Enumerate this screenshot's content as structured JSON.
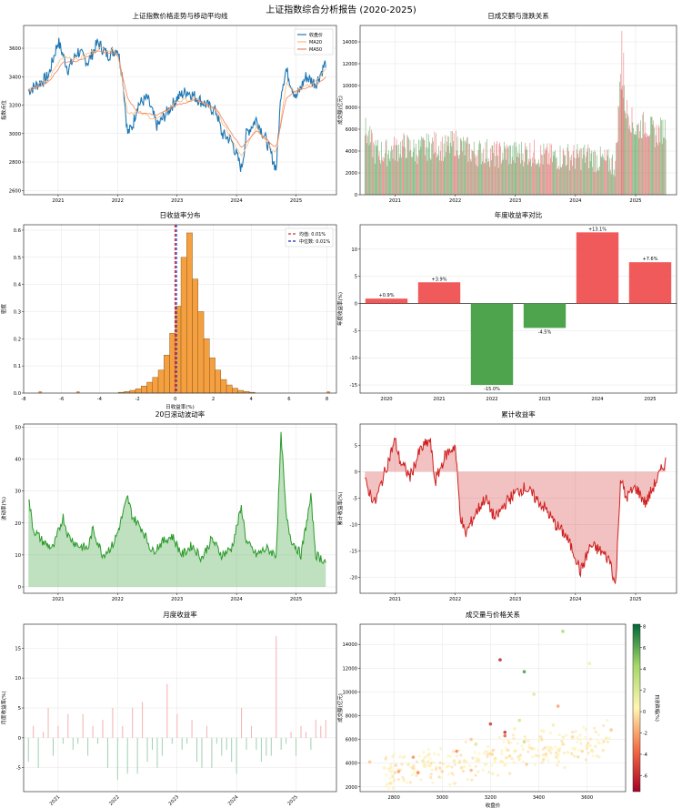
{
  "figure": {
    "title": "上证指数综合分析报告 (2020-2025)"
  },
  "chart_data": [
    {
      "id": "price",
      "type": "line",
      "title": "上证指数价格走势与移动平均线",
      "xlabel": "",
      "ylabel": "指数点位",
      "xticks": [
        "2021",
        "2022",
        "2023",
        "2024",
        "2025"
      ],
      "yticks": [
        2600,
        2800,
        3000,
        3200,
        3400,
        3600
      ],
      "ylim": [
        2570,
        3760
      ],
      "legend": {
        "placement": "top-right",
        "entries": [
          "收盘价",
          "MA20",
          "MA50"
        ]
      },
      "series": [
        {
          "name": "收盘价",
          "color": "#1f77b4",
          "x": [
            "2020-07",
            "2020-09",
            "2020-11",
            "2021-01",
            "2021-02",
            "2021-03",
            "2021-05",
            "2021-07",
            "2021-09",
            "2021-11",
            "2022-01",
            "2022-02",
            "2022-03",
            "2022-04",
            "2022-05",
            "2022-07",
            "2022-09",
            "2022-11",
            "2023-01",
            "2023-03",
            "2023-05",
            "2023-07",
            "2023-09",
            "2023-10",
            "2023-12",
            "2024-01",
            "2024-02",
            "2024-03",
            "2024-05",
            "2024-07",
            "2024-09",
            "2024-10",
            "2024-11",
            "2024-12",
            "2025-01",
            "2025-03",
            "2025-05",
            "2025-07"
          ],
          "values": [
            3300,
            3350,
            3400,
            3650,
            3550,
            3450,
            3580,
            3500,
            3640,
            3550,
            3600,
            3400,
            3000,
            3050,
            3200,
            3250,
            3050,
            3150,
            3250,
            3300,
            3250,
            3200,
            3150,
            3000,
            2950,
            2850,
            2750,
            3000,
            3100,
            2950,
            2750,
            3300,
            3450,
            3350,
            3250,
            3400,
            3350,
            3500
          ]
        },
        {
          "name": "MA20",
          "color": "#ffbb78",
          "x": [
            "2020-07",
            "2020-11",
            "2021-02",
            "2021-05",
            "2021-09",
            "2022-01",
            "2022-03",
            "2022-05",
            "2022-09",
            "2023-01",
            "2023-05",
            "2023-09",
            "2023-12",
            "2024-02",
            "2024-05",
            "2024-09",
            "2024-11",
            "2025-01",
            "2025-05",
            "2025-07"
          ],
          "values": [
            3300,
            3380,
            3550,
            3520,
            3600,
            3580,
            3150,
            3150,
            3100,
            3230,
            3240,
            3150,
            2960,
            2850,
            3050,
            2850,
            3350,
            3300,
            3360,
            3450
          ]
        },
        {
          "name": "MA50",
          "color": "#f08060",
          "x": [
            "2020-07",
            "2020-11",
            "2021-02",
            "2021-05",
            "2021-09",
            "2022-01",
            "2022-03",
            "2022-05",
            "2022-09",
            "2023-01",
            "2023-05",
            "2023-09",
            "2023-12",
            "2024-02",
            "2024-05",
            "2024-09",
            "2024-11",
            "2025-01",
            "2025-05",
            "2025-07"
          ],
          "values": [
            3300,
            3360,
            3500,
            3510,
            3580,
            3560,
            3250,
            3150,
            3130,
            3200,
            3240,
            3170,
            3000,
            2900,
            3020,
            2900,
            3250,
            3300,
            3340,
            3400
          ]
        }
      ]
    },
    {
      "id": "volume",
      "type": "bar",
      "title": "日成交额与涨跌关系",
      "xlabel": "",
      "ylabel": "成交额(亿元)",
      "xticks": [
        "2021",
        "2022",
        "2023",
        "2024",
        "2025"
      ],
      "yticks": [
        0,
        2000,
        4000,
        6000,
        8000,
        10000,
        12000,
        14000
      ],
      "ylim": [
        0,
        15500
      ],
      "colors": {
        "up": "#e06060",
        "down": "#50a050"
      },
      "x": [
        "2020-07",
        "2020-09",
        "2020-11",
        "2021-01",
        "2021-03",
        "2021-05",
        "2021-07",
        "2021-09",
        "2021-11",
        "2022-01",
        "2022-03",
        "2022-05",
        "2022-07",
        "2022-09",
        "2022-11",
        "2023-01",
        "2023-03",
        "2023-05",
        "2023-07",
        "2023-09",
        "2023-11",
        "2024-01",
        "2024-03",
        "2024-05",
        "2024-07",
        "2024-09",
        "2024-10",
        "2024-11",
        "2024-12",
        "2025-01",
        "2025-03",
        "2025-05",
        "2025-07"
      ],
      "values": [
        6000,
        4000,
        3800,
        4200,
        4500,
        4000,
        4300,
        4600,
        4200,
        4800,
        4200,
        3800,
        4000,
        3600,
        3900,
        3700,
        3900,
        3800,
        3500,
        3400,
        3600,
        3400,
        3600,
        3300,
        3000,
        2800,
        11000,
        8000,
        7000,
        6000,
        6500,
        5500,
        6200
      ]
    },
    {
      "id": "return_dist",
      "type": "bar",
      "title": "日收益率分布",
      "xlabel": "日收益率(%)",
      "ylabel": "密度",
      "xlim": [
        -8,
        8.5
      ],
      "ylim": [
        0,
        0.62
      ],
      "xticks": [
        -8,
        -6,
        -4,
        -2,
        0,
        2,
        4,
        6,
        8
      ],
      "yticks": [
        0.0,
        0.1,
        0.2,
        0.3,
        0.4,
        0.5,
        0.6
      ],
      "bin_width": 0.3,
      "bin_start": -3.0,
      "values": [
        0.003,
        0.006,
        0.01,
        0.016,
        0.026,
        0.04,
        0.058,
        0.085,
        0.14,
        0.22,
        0.32,
        0.5,
        0.59,
        0.42,
        0.3,
        0.2,
        0.13,
        0.085,
        0.05,
        0.03,
        0.018,
        0.01,
        0.006,
        0.003
      ],
      "outliers": [
        {
          "x": -7.2,
          "y": 0.002
        },
        {
          "x": -5.2,
          "y": 0.002
        },
        {
          "x": 8.0,
          "y": 0.002
        }
      ],
      "color": "#f5a040",
      "lines": [
        {
          "name": "均值: 0.01%",
          "x": 0.01,
          "color": "#d03030",
          "style": "dashed"
        },
        {
          "name": "中位数: 0.01%",
          "x": 0.01,
          "color": "#2020c0",
          "style": "dashed"
        }
      ],
      "legend": {
        "placement": "top-right",
        "entries": [
          "均值: 0.01%",
          "中位数: 0.01%"
        ]
      }
    },
    {
      "id": "annual",
      "type": "bar",
      "title": "年度收益率对比",
      "xlabel": "",
      "ylabel": "年度收益率(%)",
      "categories": [
        "2020",
        "2021",
        "2022",
        "2023",
        "2024",
        "2025"
      ],
      "values": [
        0.9,
        3.9,
        -15.0,
        -4.5,
        13.1,
        7.6
      ],
      "labels": [
        "+0.9%",
        "+3.9%",
        "-15.0%",
        "-4.5%",
        "+13.1%",
        "+7.6%"
      ],
      "yticks": [
        -15,
        -10,
        -5,
        0,
        5,
        10
      ],
      "ylim": [
        -16.5,
        14.5
      ],
      "colors": {
        "positive": "#f04848",
        "negative": "#3a9a3a"
      }
    },
    {
      "id": "volatility",
      "type": "area",
      "title": "20日滚动波动率",
      "xlabel": "",
      "ylabel": "波动率(%)",
      "xticks": [
        "2021",
        "2022",
        "2023",
        "2024",
        "2025"
      ],
      "yticks": [
        0,
        10,
        20,
        30,
        40,
        50
      ],
      "ylim": [
        -2,
        51
      ],
      "color": "#2a9a2a",
      "x": [
        "2020-07",
        "2020-08",
        "2020-10",
        "2020-12",
        "2021-02",
        "2021-03",
        "2021-05",
        "2021-07",
        "2021-08",
        "2021-10",
        "2021-12",
        "2022-01",
        "2022-03",
        "2022-04",
        "2022-06",
        "2022-08",
        "2022-10",
        "2022-12",
        "2023-02",
        "2023-04",
        "2023-06",
        "2023-08",
        "2023-10",
        "2023-12",
        "2024-02",
        "2024-03",
        "2024-05",
        "2024-07",
        "2024-09",
        "2024-10",
        "2024-11",
        "2024-12",
        "2025-02",
        "2025-04",
        "2025-05",
        "2025-07"
      ],
      "values": [
        28,
        18,
        14,
        12,
        22,
        16,
        13,
        12,
        18,
        10,
        13,
        17,
        28,
        22,
        18,
        11,
        14,
        16,
        10,
        13,
        9,
        15,
        10,
        12,
        25,
        14,
        10,
        12,
        10,
        48,
        22,
        15,
        10,
        28,
        10,
        8
      ]
    },
    {
      "id": "cumulative",
      "type": "area",
      "title": "累计收益率",
      "xlabel": "",
      "ylabel": "累计收益率(%)",
      "xticks": [
        "2021",
        "2022",
        "2023",
        "2024",
        "2025"
      ],
      "yticks": [
        -20,
        -15,
        -10,
        -5,
        0,
        5
      ],
      "ylim": [
        -23,
        9
      ],
      "color": "#d02020",
      "x": [
        "2020-07",
        "2020-09",
        "2020-11",
        "2021-01",
        "2021-02",
        "2021-04",
        "2021-06",
        "2021-08",
        "2021-09",
        "2021-11",
        "2022-01",
        "2022-02",
        "2022-03",
        "2022-05",
        "2022-07",
        "2022-09",
        "2022-11",
        "2023-01",
        "2023-03",
        "2023-05",
        "2023-07",
        "2023-09",
        "2023-11",
        "2024-01",
        "2024-02",
        "2024-04",
        "2024-06",
        "2024-08",
        "2024-09",
        "2024-10",
        "2024-11",
        "2025-01",
        "2025-03",
        "2025-05",
        "2025-07"
      ],
      "values": [
        -2,
        -6,
        0,
        6,
        2,
        -1,
        4,
        6,
        -2,
        3,
        5,
        -8,
        -12,
        -8,
        -5,
        -9,
        -6,
        -4,
        -3,
        -5,
        -7,
        -10,
        -12,
        -16,
        -19,
        -14,
        -15,
        -17,
        -22,
        -1,
        -5,
        -3,
        -6,
        -2,
        2
      ]
    },
    {
      "id": "monthly",
      "type": "bar",
      "title": "月度收益率",
      "xlabel": "",
      "ylabel": "月度收益率(%)",
      "xticks": [
        "2021",
        "2022",
        "2023",
        "2024",
        "2025"
      ],
      "yticks": [
        -5,
        0,
        5,
        10,
        15
      ],
      "ylim": [
        -9,
        19
      ],
      "colors": {
        "positive": "#f5b0b0",
        "negative": "#a0d0b0"
      },
      "x": [
        "2020-07",
        "2020-08",
        "2020-09",
        "2020-10",
        "2020-11",
        "2020-12",
        "2021-01",
        "2021-02",
        "2021-03",
        "2021-04",
        "2021-05",
        "2021-06",
        "2021-07",
        "2021-08",
        "2021-09",
        "2021-10",
        "2021-11",
        "2021-12",
        "2022-01",
        "2022-02",
        "2022-03",
        "2022-04",
        "2022-05",
        "2022-06",
        "2022-07",
        "2022-08",
        "2022-09",
        "2022-10",
        "2022-11",
        "2022-12",
        "2023-01",
        "2023-02",
        "2023-03",
        "2023-04",
        "2023-05",
        "2023-06",
        "2023-07",
        "2023-08",
        "2023-09",
        "2023-10",
        "2023-11",
        "2023-12",
        "2024-01",
        "2024-02",
        "2024-03",
        "2024-04",
        "2024-05",
        "2024-06",
        "2024-07",
        "2024-08",
        "2024-09",
        "2024-10",
        "2024-11",
        "2024-12",
        "2025-01",
        "2025-02",
        "2025-03",
        "2025-04",
        "2025-05",
        "2025-06",
        "2025-07"
      ],
      "values": [
        -4,
        2,
        -5,
        1,
        5,
        -3,
        2,
        -1,
        4,
        -2,
        -1,
        4,
        -3,
        2,
        -1,
        3,
        -5,
        5,
        -7,
        2,
        -6,
        5,
        -6,
        6,
        -4,
        -2,
        -5,
        -3,
        9,
        -1,
        4,
        -2,
        -1,
        3,
        -4,
        -5,
        2,
        -5,
        -1,
        -3,
        -2,
        -4,
        -6,
        5,
        -2,
        2,
        -2,
        -4,
        -3,
        -3,
        17,
        -2,
        -1,
        1,
        -3,
        2,
        1,
        -2,
        3,
        2,
        3
      ]
    },
    {
      "id": "scatter",
      "type": "scatter",
      "title": "成交量与价格关系",
      "xlabel": "收盘价",
      "ylabel": "成交额(亿元)",
      "xticks": [
        2800,
        3000,
        3200,
        3400,
        3600
      ],
      "yticks": [
        2000,
        4000,
        6000,
        8000,
        10000,
        12000,
        14000
      ],
      "xlim": [
        2660,
        3760
      ],
      "ylim": [
        1600,
        15700
      ],
      "colorbar": {
        "label": "日涨跌幅(%)",
        "ticks": [
          -6,
          -4,
          -2,
          0,
          2,
          4,
          6,
          8
        ],
        "range": [
          -7.5,
          8.2
        ]
      },
      "x": [
        2700,
        2760,
        2820,
        2860,
        2900,
        2950,
        3000,
        3020,
        3050,
        3080,
        3100,
        3120,
        3150,
        3180,
        3200,
        3220,
        3250,
        3280,
        3300,
        3320,
        3350,
        3380,
        3400,
        3420,
        3450,
        3480,
        3500,
        3520,
        3550,
        3580,
        3600,
        3620,
        3650,
        3680,
        3700,
        2880,
        2920,
        3060,
        3140,
        3260,
        3340,
        3420,
        3460,
        3540,
        3260,
        3300,
        3320,
        3480,
        3200,
        3340,
        3500,
        3610,
        3380,
        3120,
        3240
      ],
      "values": [
        4100,
        3600,
        3300,
        3900,
        3200,
        3800,
        3300,
        3700,
        4200,
        3600,
        4100,
        3400,
        4300,
        3900,
        4800,
        4400,
        4100,
        4600,
        5000,
        4400,
        3900,
        5200,
        4600,
        4300,
        5300,
        4700,
        5600,
        4900,
        5200,
        5000,
        5400,
        5100,
        5700,
        6100,
        6800,
        4500,
        4200,
        5000,
        5600,
        6300,
        5800,
        6700,
        7200,
        6200,
        6600,
        6900,
        7600,
        8800,
        7300,
        11700,
        15100,
        12400,
        9800,
        6000,
        12700
      ],
      "changes": [
        -1,
        0.5,
        -2,
        1,
        -3,
        0.2,
        -0.5,
        0.3,
        1,
        -0.2,
        0.4,
        -1.5,
        0.2,
        0.8,
        -0.4,
        0.1,
        0.5,
        -0.3,
        0.2,
        0.6,
        -0.8,
        0.3,
        0.1,
        -0.2,
        0.4,
        0.2,
        -0.1,
        0.3,
        0.5,
        -0.4,
        0.6,
        0.1,
        0.3,
        0.8,
        -1,
        -2.5,
        1.5,
        -3,
        2,
        -4,
        3,
        0.5,
        1,
        -0.5,
        -6,
        0.2,
        2.5,
        -2,
        -5.5,
        6.5,
        4,
        1.2,
        2,
        -1,
        -6.5
      ]
    }
  ]
}
